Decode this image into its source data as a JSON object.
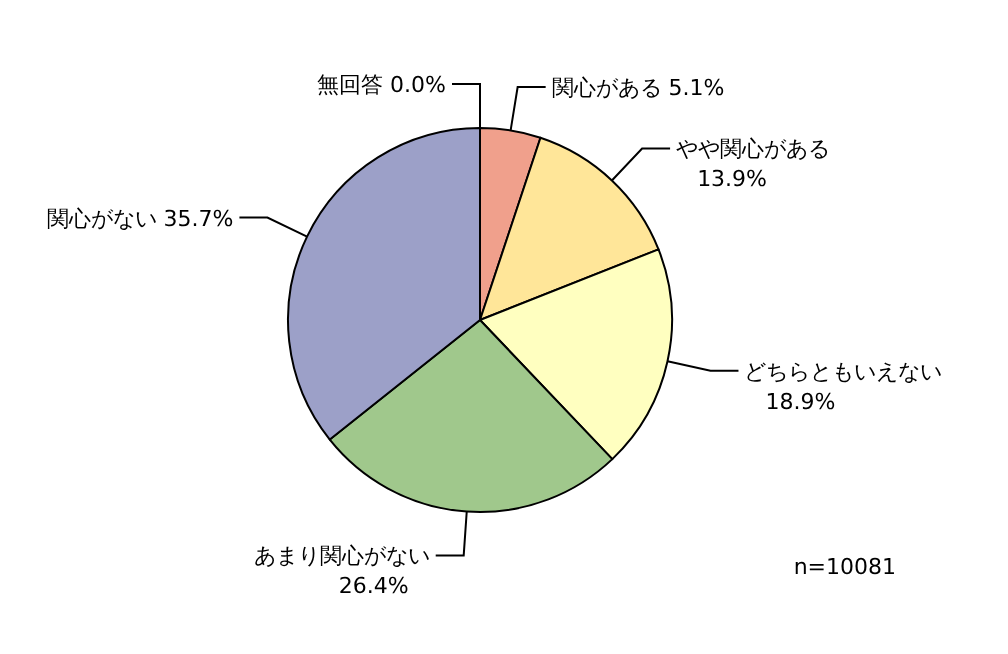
{
  "chart_data": {
    "type": "pie",
    "categories": [
      "関心がある",
      "やや関心がある",
      "どちらともいえない",
      "あまり関心がない",
      "関心がない",
      "無回答"
    ],
    "values": [
      5.1,
      13.9,
      18.9,
      26.4,
      35.7,
      0.0
    ],
    "value_labels": [
      "5.1%",
      "13.9%",
      "18.9%",
      "26.4%",
      "35.7%",
      "0.0%"
    ],
    "colors": [
      "#f0a08c",
      "#ffe699",
      "#ffffc0",
      "#a0c88c",
      "#9ca0c8",
      "#ffffff"
    ],
    "annotations": [
      "n=10081"
    ]
  }
}
